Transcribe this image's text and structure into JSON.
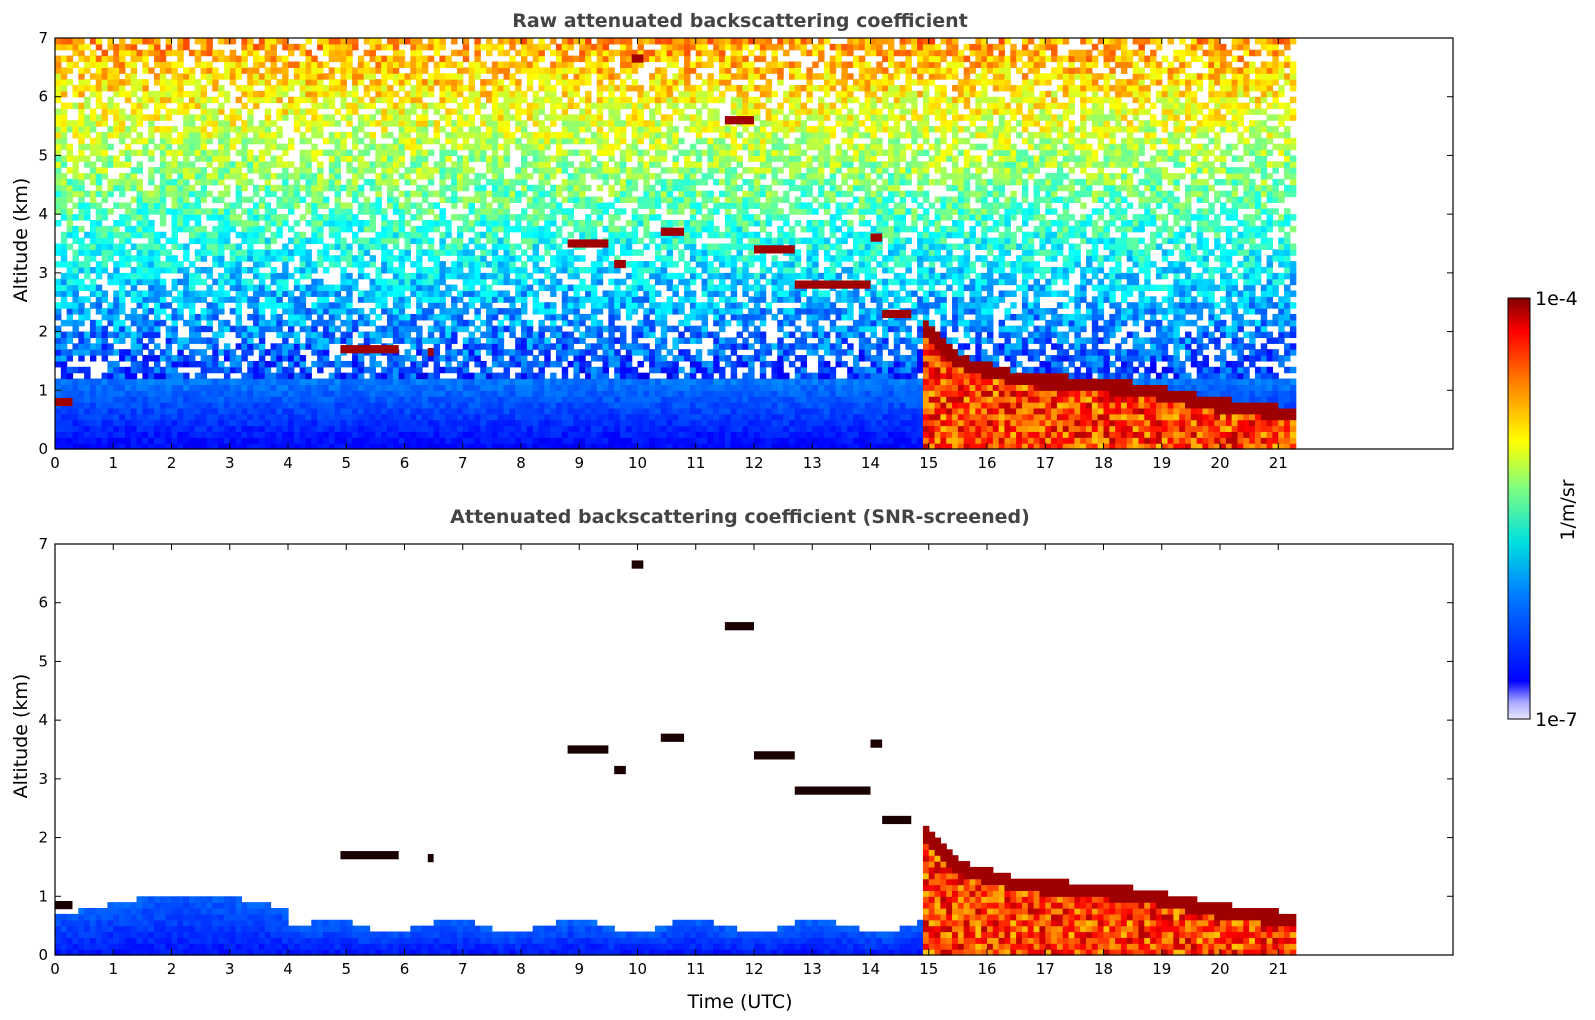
{
  "chart_data": [
    {
      "type": "heatmap",
      "title": "Raw attenuated backscattering coefficient",
      "xlabel": "",
      "ylabel": "Altitude (km)",
      "xlim": [
        0,
        24
      ],
      "ylim": [
        0,
        7
      ],
      "xticks": [
        "0",
        "1",
        "2",
        "3",
        "4",
        "5",
        "6",
        "7",
        "8",
        "9",
        "10",
        "11",
        "12",
        "13",
        "14",
        "15",
        "16",
        "17",
        "18",
        "19",
        "20",
        "21"
      ],
      "yticks": [
        "0",
        "1",
        "2",
        "3",
        "4",
        "5",
        "6",
        "7"
      ],
      "data_end_time": 21.3,
      "screened": false,
      "grid": false,
      "clouds": [
        {
          "x0": 0.0,
          "x1": 0.3,
          "alt": 0.8
        },
        {
          "x0": 4.9,
          "x1": 5.9,
          "alt": 1.7
        },
        {
          "x0": 6.4,
          "x1": 6.5,
          "alt": 1.65
        },
        {
          "x0": 8.8,
          "x1": 9.5,
          "alt": 3.5
        },
        {
          "x0": 9.9,
          "x1": 10.1,
          "alt": 6.65
        },
        {
          "x0": 9.6,
          "x1": 9.8,
          "alt": 3.15
        },
        {
          "x0": 10.4,
          "x1": 10.8,
          "alt": 3.7
        },
        {
          "x0": 11.5,
          "x1": 12.0,
          "alt": 5.6
        },
        {
          "x0": 12.0,
          "x1": 12.7,
          "alt": 3.4
        },
        {
          "x0": 12.7,
          "x1": 14.0,
          "alt": 2.8
        },
        {
          "x0": 14.0,
          "x1": 14.2,
          "alt": 3.6
        },
        {
          "x0": 14.2,
          "x1": 14.7,
          "alt": 2.3
        }
      ],
      "boundary_layer_top": [
        [
          14.9,
          2.1
        ],
        [
          15.5,
          1.5
        ],
        [
          16.5,
          1.2
        ],
        [
          18.4,
          1.05
        ],
        [
          19.0,
          0.95
        ],
        [
          20.0,
          0.75
        ],
        [
          21.3,
          0.6
        ]
      ]
    },
    {
      "type": "heatmap",
      "title": "Attenuated backscattering coefficient (SNR-screened)",
      "xlabel": "Time (UTC)",
      "ylabel": "Altitude (km)",
      "xlim": [
        0,
        24
      ],
      "ylim": [
        0,
        7
      ],
      "xticks": [
        "0",
        "1",
        "2",
        "3",
        "4",
        "5",
        "6",
        "7",
        "8",
        "9",
        "10",
        "11",
        "12",
        "13",
        "14",
        "15",
        "16",
        "17",
        "18",
        "19",
        "20",
        "21"
      ],
      "yticks": [
        "0",
        "1",
        "2",
        "3",
        "4",
        "5",
        "6",
        "7"
      ],
      "data_end_time": 21.3,
      "screened": true,
      "grid": false,
      "clouds": [
        {
          "x0": 0.0,
          "x1": 0.3,
          "alt": 0.85
        },
        {
          "x0": 4.9,
          "x1": 5.9,
          "alt": 1.7
        },
        {
          "x0": 6.4,
          "x1": 6.5,
          "alt": 1.65
        },
        {
          "x0": 8.8,
          "x1": 9.5,
          "alt": 3.5
        },
        {
          "x0": 9.9,
          "x1": 10.1,
          "alt": 6.65
        },
        {
          "x0": 9.6,
          "x1": 9.8,
          "alt": 3.15
        },
        {
          "x0": 10.4,
          "x1": 10.8,
          "alt": 3.7
        },
        {
          "x0": 11.5,
          "x1": 12.0,
          "alt": 5.6
        },
        {
          "x0": 12.0,
          "x1": 12.7,
          "alt": 3.4
        },
        {
          "x0": 12.7,
          "x1": 14.0,
          "alt": 2.8
        },
        {
          "x0": 14.0,
          "x1": 14.2,
          "alt": 3.6
        },
        {
          "x0": 14.2,
          "x1": 14.7,
          "alt": 2.3
        }
      ],
      "boundary_layer_top": [
        [
          14.9,
          2.1
        ],
        [
          15.5,
          1.5
        ],
        [
          16.5,
          1.2
        ],
        [
          18.4,
          1.05
        ],
        [
          19.0,
          0.95
        ],
        [
          20.0,
          0.75
        ],
        [
          21.3,
          0.6
        ]
      ]
    }
  ],
  "colorbar": {
    "max_label": "1e-4",
    "min_label": "1e-7",
    "unit_label": "1/m/sr",
    "colormap": "jet"
  }
}
